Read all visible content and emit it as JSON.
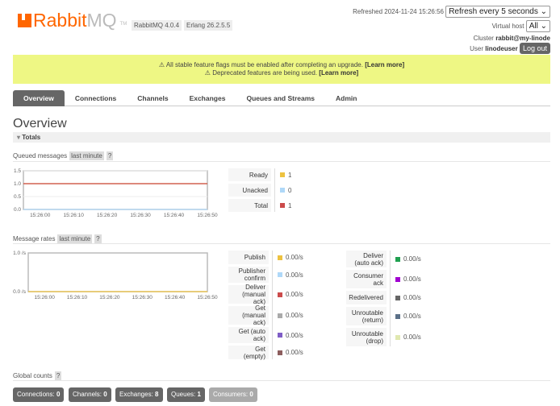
{
  "header": {
    "logo_text": "RabbitMQ",
    "logo_tm": "TM",
    "version": "RabbitMQ 4.0.4",
    "erlang": "Erlang 26.2.5.5",
    "refreshed_label": "Refreshed 2024-11-24 15:26:56",
    "refresh_select": "Refresh every 5 seconds",
    "vhost_label": "Virtual host",
    "vhost_value": "All",
    "cluster_label": "Cluster",
    "cluster_value": "rabbit@my-linode",
    "user_label": "User",
    "user_value": "linodeuser",
    "logout": "Log out"
  },
  "banner": {
    "line1": "⚠ All stable feature flags must be enabled after completing an upgrade.",
    "link1": "[Learn more]",
    "line2": "⚠ Deprecated features are being used.",
    "link2": "[Learn more]"
  },
  "tabs": [
    "Overview",
    "Connections",
    "Channels",
    "Exchanges",
    "Queues and Streams",
    "Admin"
  ],
  "page_title": "Overview",
  "totals_label": "Totals",
  "queued": {
    "title": "Queued messages",
    "range": "last minute",
    "help": "?",
    "legend": [
      {
        "label": "Ready",
        "value": "1",
        "color": "#edc240"
      },
      {
        "label": "Unacked",
        "value": "0",
        "color": "#afd8f8"
      },
      {
        "label": "Total",
        "value": "1",
        "color": "#cb4b4b"
      }
    ]
  },
  "rates": {
    "title": "Message rates",
    "range": "last minute",
    "help": "?",
    "left": [
      {
        "label": "Publish",
        "value": "0.00/s",
        "color": "#edc240"
      },
      {
        "label": "Publisher confirm",
        "value": "0.00/s",
        "color": "#afd8f8"
      },
      {
        "label": "Deliver (manual ack)",
        "value": "0.00/s",
        "color": "#cb4b4b"
      },
      {
        "label": "Get (manual ack)",
        "value": "0.00/s",
        "color": "#aaaaaa"
      },
      {
        "label": "Get (auto ack)",
        "value": "0.00/s",
        "color": "#7f5dc6"
      },
      {
        "label": "Get (empty)",
        "value": "0.00/s",
        "color": "#8d5e5e"
      }
    ],
    "right": [
      {
        "label": "Deliver (auto ack)",
        "value": "0.00/s",
        "color": "#20a050"
      },
      {
        "label": "Consumer ack",
        "value": "0.00/s",
        "color": "#a000d0"
      },
      {
        "label": "Redelivered",
        "value": "0.00/s",
        "color": "#666666"
      },
      {
        "label": "Unroutable (return)",
        "value": "0.00/s",
        "color": "#5b7088"
      },
      {
        "label": "Unroutable (drop)",
        "value": "0.00/s",
        "color": "#e0e8b0"
      }
    ]
  },
  "global": {
    "title": "Global counts",
    "help": "?",
    "items": [
      {
        "label": "Connections:",
        "value": "0"
      },
      {
        "label": "Channels:",
        "value": "0"
      },
      {
        "label": "Exchanges:",
        "value": "8"
      },
      {
        "label": "Queues:",
        "value": "1"
      },
      {
        "label": "Consumers:",
        "value": "0"
      }
    ]
  },
  "chart_data": [
    {
      "type": "line",
      "ylim": [
        0,
        1.5
      ],
      "yticks": [
        "0.0",
        "0.5",
        "1.0",
        "1.5"
      ],
      "xlim": [
        "15:25:55",
        "15:26:50"
      ],
      "xticks": [
        "15:26:00",
        "15:26:10",
        "15:26:20",
        "15:26:30",
        "15:26:40",
        "15:26:50"
      ],
      "grid": true,
      "x": [
        "15:25:55",
        "15:26:00",
        "15:26:05",
        "15:26:10",
        "15:26:15",
        "15:26:20",
        "15:26:25",
        "15:26:30",
        "15:26:35",
        "15:26:40",
        "15:26:45",
        "15:26:50"
      ],
      "series": [
        {
          "name": "Ready",
          "color": "#edc240",
          "values": [
            1,
            1,
            1,
            1,
            1,
            1,
            1,
            1,
            1,
            1,
            1,
            1
          ]
        },
        {
          "name": "Unacked",
          "color": "#afd8f8",
          "values": [
            0,
            0,
            0,
            0,
            0,
            0,
            0,
            0,
            0,
            0,
            0,
            0
          ]
        },
        {
          "name": "Total",
          "color": "#cb4b4b",
          "values": [
            1,
            1,
            1,
            1,
            1,
            1,
            1,
            1,
            1,
            1,
            1,
            1
          ]
        }
      ]
    },
    {
      "type": "line",
      "ylim": [
        0,
        1
      ],
      "yticks": [
        "0.0 /s",
        "1.0 /s"
      ],
      "xlim": [
        "15:25:55",
        "15:26:50"
      ],
      "xticks": [
        "15:26:00",
        "15:26:10",
        "15:26:20",
        "15:26:30",
        "15:26:40",
        "15:26:50"
      ],
      "grid": false,
      "x": [
        "15:25:55",
        "15:26:00",
        "15:26:05",
        "15:26:10",
        "15:26:15",
        "15:26:20",
        "15:26:25",
        "15:26:30",
        "15:26:35",
        "15:26:40",
        "15:26:45",
        "15:26:50"
      ],
      "series": [
        {
          "name": "Publish",
          "color": "#edc240",
          "values": [
            0,
            0,
            0,
            0,
            0,
            0,
            0,
            0,
            0,
            0,
            0,
            0
          ]
        }
      ]
    }
  ]
}
